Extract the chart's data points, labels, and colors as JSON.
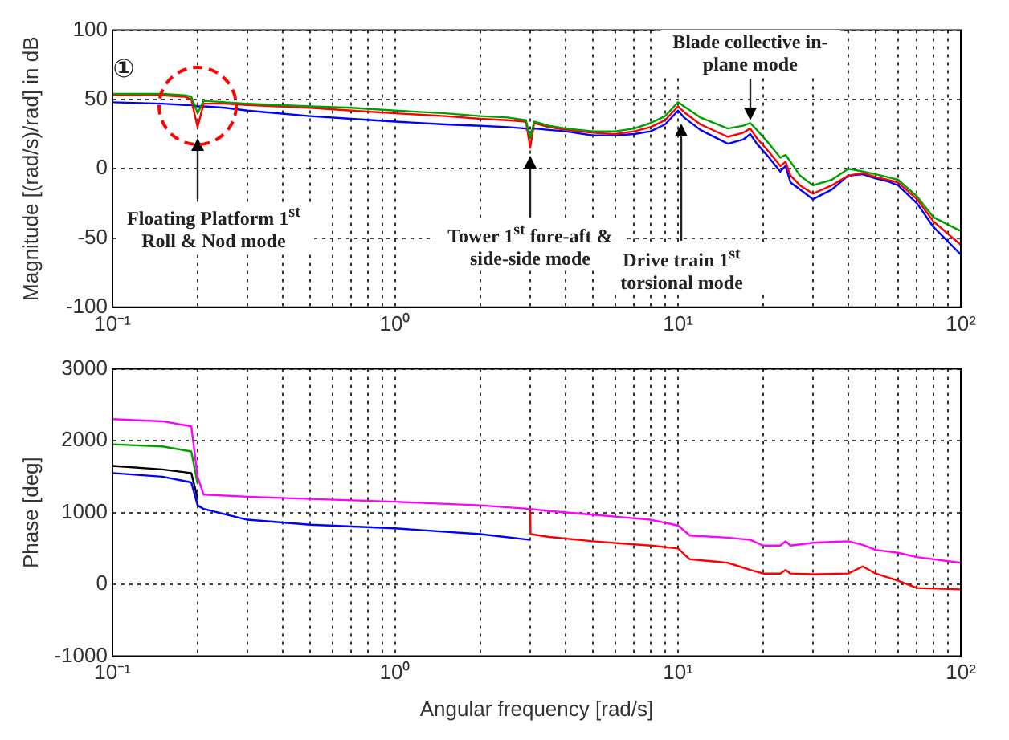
{
  "chart_data": [
    {
      "type": "line",
      "ylabel": "Magnitude [(rad/s)/rad] in dB",
      "log": "x",
      "grid": true,
      "legend": false,
      "marker": "none",
      "line_style": "solid",
      "xlim": [
        0.1,
        100
      ],
      "ylim": [
        -100,
        100
      ],
      "yticks": [
        -100,
        -50,
        0,
        50,
        100
      ],
      "xticks": [
        {
          "value": 0.1,
          "label": "10⁻¹"
        },
        {
          "value": 0.2,
          "label": null
        },
        {
          "value": 0.3,
          "label": null
        },
        {
          "value": 0.4,
          "label": null
        },
        {
          "value": 0.5,
          "label": null
        },
        {
          "value": 0.6,
          "label": null
        },
        {
          "value": 0.7,
          "label": null
        },
        {
          "value": 0.8,
          "label": null
        },
        {
          "value": 0.9,
          "label": null
        },
        {
          "value": 1,
          "label": "10⁰"
        },
        {
          "value": 2,
          "label": null
        },
        {
          "value": 3,
          "label": null
        },
        {
          "value": 4,
          "label": null
        },
        {
          "value": 5,
          "label": null
        },
        {
          "value": 6,
          "label": null
        },
        {
          "value": 7,
          "label": null
        },
        {
          "value": 8,
          "label": null
        },
        {
          "value": 9,
          "label": null
        },
        {
          "value": 10,
          "label": "10¹"
        },
        {
          "value": 20,
          "label": null
        },
        {
          "value": 30,
          "label": null
        },
        {
          "value": 40,
          "label": null
        },
        {
          "value": 50,
          "label": null
        },
        {
          "value": 60,
          "label": null
        },
        {
          "value": 70,
          "label": null
        },
        {
          "value": 80,
          "label": null
        },
        {
          "value": 90,
          "label": null
        },
        {
          "value": 100,
          "label": "10²"
        }
      ],
      "series": [
        {
          "color": "#00a000",
          "x": [
            0.1,
            0.15,
            0.18,
            0.19,
            0.2,
            0.21,
            0.25,
            0.3,
            0.5,
            0.7,
            1,
            1.5,
            2,
            2.5,
            2.9,
            3,
            3.1,
            3.5,
            4,
            5,
            6,
            7,
            8,
            9,
            10,
            10.5,
            12,
            15,
            17,
            18,
            19,
            21,
            23,
            24,
            25,
            27,
            30,
            35,
            40,
            45,
            50,
            55,
            60,
            70,
            80,
            100
          ],
          "values": [
            54,
            54,
            53,
            52,
            40,
            49,
            48,
            47,
            45,
            44,
            42,
            40,
            38,
            37,
            35,
            22,
            34,
            31,
            29,
            27,
            27,
            29,
            33,
            38,
            48,
            45,
            37,
            29,
            31,
            33,
            28,
            18,
            8,
            10,
            5,
            -5,
            -12,
            -8,
            0,
            -2,
            -4,
            -6,
            -8,
            -20,
            -35,
            -45
          ]
        },
        {
          "color": "#ff0000",
          "x": [
            0.1,
            0.15,
            0.18,
            0.19,
            0.2,
            0.21,
            0.25,
            0.3,
            0.5,
            0.7,
            1,
            1.5,
            2,
            2.5,
            2.9,
            3,
            3.1,
            3.5,
            4,
            5,
            6,
            7,
            8,
            9,
            10,
            10.5,
            12,
            15,
            17,
            18,
            19,
            21,
            23,
            24,
            25,
            27,
            30,
            35,
            40,
            45,
            50,
            55,
            60,
            70,
            80,
            100
          ],
          "values": [
            53,
            53,
            52,
            50,
            30,
            47,
            47,
            46,
            44,
            42,
            40,
            38,
            36,
            35,
            34,
            15,
            33,
            30,
            28,
            26,
            25,
            27,
            30,
            35,
            45,
            41,
            32,
            23,
            26,
            29,
            22,
            12,
            2,
            5,
            -5,
            -12,
            -18,
            -12,
            -5,
            -3,
            -6,
            -8,
            -10,
            -22,
            -38,
            -55
          ]
        },
        {
          "color": "#0000ff",
          "x": [
            0.1,
            0.15,
            0.18,
            0.19,
            0.2,
            0.21,
            0.25,
            0.3,
            0.5,
            0.7,
            1,
            1.5,
            2,
            2.5,
            2.9,
            3,
            3.1,
            3.5,
            4,
            5,
            6,
            7,
            8,
            9,
            10,
            10.5,
            12,
            15,
            17,
            18,
            19,
            21,
            23,
            24,
            25,
            27,
            30,
            35,
            40,
            45,
            50,
            55,
            60,
            70,
            80,
            100
          ],
          "values": [
            48,
            47,
            46,
            46,
            45,
            45,
            44,
            42,
            38,
            36,
            34,
            32,
            31,
            30,
            29,
            26,
            29,
            28,
            27,
            24,
            24,
            25,
            27,
            32,
            42,
            37,
            28,
            18,
            21,
            25,
            18,
            8,
            -2,
            2,
            -10,
            -15,
            -22,
            -15,
            -5,
            -4,
            -7,
            -9,
            -12,
            -25,
            -42,
            -62
          ]
        }
      ],
      "annotations": [
        {
          "text": "Floating Platform 1$^{st}$ Roll & Nod mode",
          "x": 0.2,
          "y": 25
        },
        {
          "text": "Tower 1$^{st}$ fore-aft & side-side mode",
          "x": 3,
          "y": 12
        },
        {
          "text": "Drive train 1$^{st}$ torsional mode",
          "x": 10.3,
          "y": 35
        },
        {
          "text": "Blade collective in-plane mode",
          "x": 18,
          "y": 32
        },
        {
          "text": "①",
          "x": 0.2,
          "y": 45
        }
      ]
    },
    {
      "type": "line",
      "xlabel": "Angular frequency [rad/s]",
      "ylabel": "Phase [deg]",
      "log": "x",
      "grid": true,
      "legend": false,
      "marker": "none",
      "line_style": "solid",
      "xlim": [
        0.1,
        100
      ],
      "ylim": [
        -1000,
        3000
      ],
      "yticks": [
        -1000,
        0,
        1000,
        2000,
        3000
      ],
      "xticks": [
        {
          "value": 0.1,
          "label": "10⁻¹"
        },
        {
          "value": 0.2,
          "label": null
        },
        {
          "value": 0.3,
          "label": null
        },
        {
          "value": 0.4,
          "label": null
        },
        {
          "value": 0.5,
          "label": null
        },
        {
          "value": 0.6,
          "label": null
        },
        {
          "value": 0.7,
          "label": null
        },
        {
          "value": 0.8,
          "label": null
        },
        {
          "value": 0.9,
          "label": null
        },
        {
          "value": 1,
          "label": "10⁰"
        },
        {
          "value": 2,
          "label": null
        },
        {
          "value": 3,
          "label": null
        },
        {
          "value": 4,
          "label": null
        },
        {
          "value": 5,
          "label": null
        },
        {
          "value": 6,
          "label": null
        },
        {
          "value": 7,
          "label": null
        },
        {
          "value": 8,
          "label": null
        },
        {
          "value": 9,
          "label": null
        },
        {
          "value": 10,
          "label": "10¹"
        },
        {
          "value": 20,
          "label": null
        },
        {
          "value": 30,
          "label": null
        },
        {
          "value": 40,
          "label": null
        },
        {
          "value": 50,
          "label": null
        },
        {
          "value": 60,
          "label": null
        },
        {
          "value": 70,
          "label": null
        },
        {
          "value": 80,
          "label": null
        },
        {
          "value": 90,
          "label": null
        },
        {
          "value": 100,
          "label": "10²"
        }
      ],
      "series": [
        {
          "color": "#ff00ff",
          "x": [
            0.1,
            0.15,
            0.19,
            0.2,
            0.21,
            0.3,
            0.5,
            1,
            2,
            3,
            3.01,
            3.5,
            5,
            8,
            10,
            11,
            15,
            18,
            20,
            23,
            24,
            25,
            30,
            40,
            45,
            50,
            60,
            70,
            100
          ],
          "values": [
            2300,
            2270,
            2200,
            1500,
            1250,
            1220,
            1190,
            1150,
            1100,
            1050,
            1050,
            1020,
            970,
            900,
            820,
            680,
            650,
            620,
            540,
            540,
            600,
            540,
            580,
            600,
            550,
            480,
            440,
            380,
            300
          ]
        },
        {
          "color": "#00a000",
          "x": [
            0.1,
            0.15,
            0.19,
            0.2
          ],
          "values": [
            1950,
            1920,
            1850,
            1400
          ]
        },
        {
          "color": "#000000",
          "x": [
            0.1,
            0.15,
            0.19,
            0.2
          ],
          "values": [
            1650,
            1600,
            1550,
            1200
          ]
        },
        {
          "color": "#0000ff",
          "x": [
            0.1,
            0.15,
            0.19,
            0.2,
            0.21,
            0.3,
            0.5,
            1,
            2,
            3
          ],
          "values": [
            1550,
            1500,
            1420,
            1100,
            1050,
            900,
            830,
            780,
            700,
            620
          ]
        },
        {
          "color": "#ff0000",
          "x": [
            3,
            3.01,
            3.5,
            5,
            8,
            10,
            11,
            15,
            18,
            20,
            23,
            24,
            25,
            30,
            40,
            45,
            50,
            60,
            70,
            100
          ],
          "values": [
            1050,
            700,
            660,
            600,
            540,
            500,
            350,
            300,
            200,
            150,
            150,
            200,
            150,
            140,
            150,
            250,
            150,
            50,
            -50,
            -70
          ]
        }
      ]
    }
  ]
}
